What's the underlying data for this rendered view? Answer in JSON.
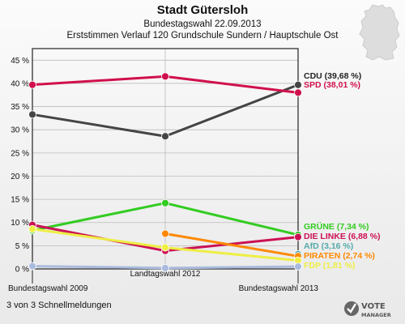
{
  "header": {
    "title": "Stadt Gütersloh",
    "subtitle": "Bundestagswahl 22.09.2013",
    "subtitle2": "Erststimmen Verlauf 120 Grundschule Sundern / Hauptschule Ost"
  },
  "footer": {
    "text": "3 von 3 Schnellmeldungen"
  },
  "logo": {
    "line1": "VOTE",
    "line2": "MANAGER"
  },
  "chart_data": {
    "type": "line",
    "title": "Stadt Gütersloh",
    "categories": [
      "Bundestagswahl 2009",
      "Landtagswahl 2012",
      "Bundestagswahl 2013"
    ],
    "ylim": [
      0,
      47.5
    ],
    "yticks": [
      0,
      5,
      10,
      15,
      20,
      25,
      30,
      35,
      40,
      45
    ],
    "ytick_labels": [
      "0 %",
      "5 %",
      "10 %",
      "15 %",
      "20 %",
      "25 %",
      "30 %",
      "35 %",
      "40 %",
      "45 %"
    ],
    "grid": true,
    "legend_position": "right",
    "series": [
      {
        "name": "CDU",
        "label": "CDU (39,68 %)",
        "color": "#444444",
        "values": [
          33.3,
          28.6,
          39.68
        ]
      },
      {
        "name": "SPD",
        "label": "SPD (38,01 %)",
        "color": "#d0104c",
        "values": [
          39.7,
          41.5,
          38.01
        ]
      },
      {
        "name": "GRÜNE",
        "label": "GRÜNE (7,34 %)",
        "color": "#33cc22",
        "values": [
          8.3,
          14.2,
          7.34
        ]
      },
      {
        "name": "DIE LINKE",
        "label": "DIE LINKE (6,88 %)",
        "color": "#cc1155",
        "values": [
          9.5,
          3.9,
          6.88
        ]
      },
      {
        "name": "AfD",
        "label": "AfD (3,16 %)",
        "color": "#55aaaa",
        "values": [
          null,
          null,
          3.16
        ]
      },
      {
        "name": "PIRATEN",
        "label": "PIRATEN (2,74 %)",
        "color": "#ff8800",
        "values": [
          null,
          7.6,
          2.74
        ]
      },
      {
        "name": "FDP",
        "label": "FDP (1,81 %)",
        "color": "#eeee44",
        "values": [
          8.6,
          4.6,
          1.81
        ]
      },
      {
        "name": "Sonstige",
        "label": "",
        "color": "#aabbdd",
        "values": [
          0.6,
          0.2,
          0.5
        ]
      }
    ]
  }
}
